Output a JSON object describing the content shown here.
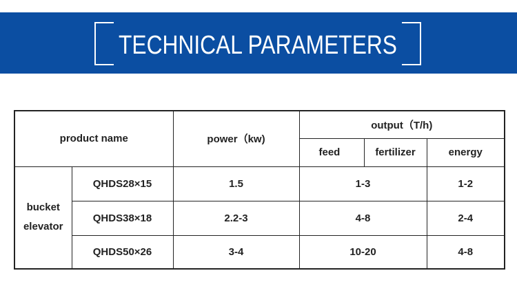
{
  "header": {
    "title": "TECHNICAL PARAMETERS"
  },
  "table": {
    "headers": {
      "product_name": "product name",
      "power": "power（kw)",
      "output": "output（T/h)",
      "feed": "feed",
      "fertilizer": "fertilizer",
      "energy": "energy"
    },
    "group": "bucket elevator",
    "rows": [
      [
        "QHDS28×15",
        "1.5",
        "1-3",
        "1-2"
      ],
      [
        "QHDS38×18",
        "2.2-3",
        "4-8",
        "2-4"
      ],
      [
        "QHDS50×26",
        "3-4",
        "10-20",
        "4-8"
      ]
    ]
  }
}
